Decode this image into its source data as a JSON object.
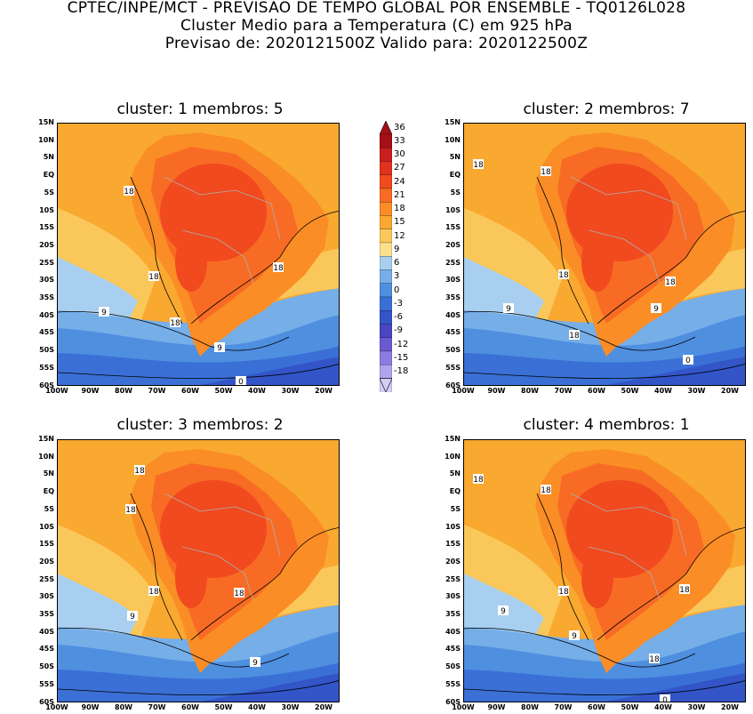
{
  "header": {
    "line1": "CPTEC/INPE/MCT - PREVISAO DE TEMPO GLOBAL POR ENSEMBLE - TQ0126L028",
    "line2": "Cluster Medio para a Temperatura (C) em 925 hPa",
    "line3": "Previsao de: 2020121500Z   Valido para: 2020122500Z"
  },
  "panels": [
    {
      "title": "cluster: 1   membros: 5",
      "labels": [
        "18",
        "18",
        "18",
        "18",
        "9",
        "9",
        "0"
      ]
    },
    {
      "title": "cluster: 2   membros: 7",
      "labels": [
        "18",
        "18",
        "18",
        "18",
        "9",
        "9",
        "18",
        "0"
      ]
    },
    {
      "title": "cluster: 3   membros: 2",
      "labels": [
        "18",
        "18",
        "18",
        "18",
        "9",
        "9"
      ]
    },
    {
      "title": "cluster: 4   membros: 1",
      "labels": [
        "18",
        "18",
        "18",
        "18",
        "9",
        "9",
        "18",
        "0"
      ]
    }
  ],
  "lat_ticks": [
    "15N",
    "10N",
    "5N",
    "EQ",
    "5S",
    "10S",
    "15S",
    "20S",
    "25S",
    "30S",
    "35S",
    "40S",
    "45S",
    "50S",
    "55S",
    "60S"
  ],
  "lon_ticks": [
    "100W",
    "90W",
    "80W",
    "70W",
    "60W",
    "50W",
    "40W",
    "30W",
    "20W"
  ],
  "colorbar": {
    "labels": [
      "36",
      "33",
      "30",
      "27",
      "24",
      "21",
      "18",
      "15",
      "12",
      "9",
      "6",
      "3",
      "0",
      "-3",
      "-6",
      "-9",
      "-12",
      "-15",
      "-18"
    ],
    "colors": [
      "#a50f15",
      "#c8201e",
      "#e0321e",
      "#f04a1e",
      "#f86b24",
      "#fa8d26",
      "#f9a830",
      "#fac85a",
      "#fbe18c",
      "#a8cff0",
      "#76aee8",
      "#4f8fe0",
      "#3a70d6",
      "#3355c8",
      "#4a45c0",
      "#6a5ad0",
      "#8a7ce0",
      "#b0a5ec",
      "#d4ccf5"
    ]
  }
}
